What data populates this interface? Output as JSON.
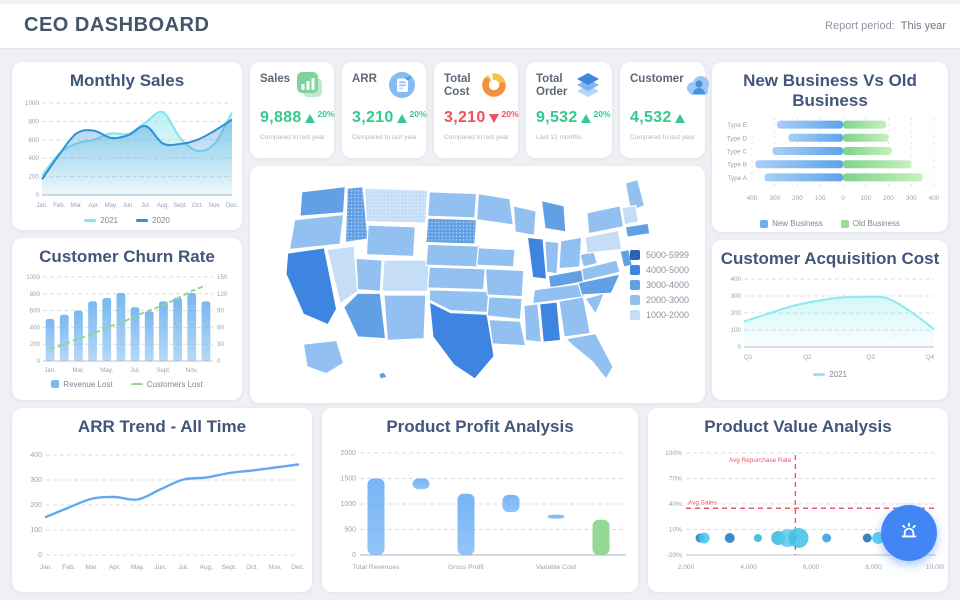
{
  "header": {
    "title": "CEO DASHBOARD",
    "report_period_label": "Report period:",
    "report_period_value": "This year"
  },
  "kpis": [
    {
      "label": "Sales",
      "value": "9,888",
      "direction": "up",
      "delta": "20%",
      "subtext": "Compared to last year",
      "icon": "bar-chart-icon",
      "accent": "#35c98e"
    },
    {
      "label": "ARR",
      "value": "3,210",
      "direction": "up",
      "delta": "20%",
      "subtext": "Compared to last year",
      "icon": "document-icon",
      "accent": "#35c98e"
    },
    {
      "label": "Total Cost",
      "value": "3,210",
      "direction": "down",
      "delta": "20%",
      "subtext": "Compared to last year",
      "icon": "donut-icon",
      "accent": "#f04f5c"
    },
    {
      "label": "Total Order",
      "value": "9,532",
      "direction": "up",
      "delta": "20%",
      "subtext": "Last 12 months.",
      "icon": "layers-icon",
      "accent": "#35c98e"
    },
    {
      "label": "Customer",
      "value": "4,532",
      "direction": "up",
      "delta": "",
      "subtext": "Compared to last year",
      "icon": "customer-cloud-icon",
      "accent": "#35c98e"
    }
  ],
  "fab": {
    "icon": "siren-icon",
    "color": "#4285f4"
  },
  "chart_data": [
    {
      "id": "monthly_sales",
      "type": "area",
      "title": "Monthly Sales",
      "categories": [
        "Jan.",
        "Feb.",
        "Mar.",
        "Apr.",
        "May.",
        "Jun.",
        "Jul.",
        "Aug.",
        "Sept.",
        "Oct.",
        "Nov.",
        "Dec."
      ],
      "series": [
        {
          "name": "2021",
          "color": "#86e3ef",
          "values": [
            210,
            450,
            560,
            600,
            670,
            665,
            790,
            900,
            620,
            480,
            560,
            900
          ]
        },
        {
          "name": "2020",
          "color": "#3390d5",
          "values": [
            170,
            440,
            670,
            700,
            620,
            650,
            750,
            560,
            555,
            600,
            700,
            820
          ]
        }
      ],
      "ylim": [
        0,
        1000
      ],
      "yticks": [
        0,
        200,
        400,
        600,
        800,
        1000
      ],
      "grid": "dashed-horizontal",
      "legend_position": "bottom"
    },
    {
      "id": "new_vs_old",
      "type": "bar-tornado",
      "title": "New Business Vs Old Business",
      "categories": [
        "Type E",
        "Type D",
        "Type C",
        "Type B",
        "Type A"
      ],
      "series": [
        {
          "name": "New Business",
          "color": "#6fb0f2",
          "side": "left",
          "values": [
            290,
            240,
            310,
            385,
            345
          ]
        },
        {
          "name": "Old Business",
          "color": "#9ddb96",
          "side": "right",
          "values": [
            190,
            200,
            215,
            300,
            350
          ]
        }
      ],
      "xticks": [
        400,
        300,
        200,
        100,
        0,
        100,
        200,
        300,
        400
      ],
      "xlim": 400,
      "legend_position": "bottom"
    },
    {
      "id": "churn",
      "type": "bar-line",
      "title": "Customer Churn Rate",
      "categories": [
        "Jan.",
        "Feb.",
        "Mar.",
        "Apr.",
        "May.",
        "Jun.",
        "Jul.",
        "Aug.",
        "Sept.",
        "Oct.",
        "Nov.",
        "Dec."
      ],
      "xtick_labels": [
        "Jan.",
        "Mar.",
        "May.",
        "Jul.",
        "Sept.",
        "Nov."
      ],
      "series": [
        {
          "name": "Revenue Lost",
          "style": "bar",
          "axis": "left",
          "color": "#79b8f0",
          "values": [
            500,
            550,
            600,
            710,
            750,
            810,
            640,
            590,
            710,
            750,
            810,
            710
          ]
        },
        {
          "name": "Customers Lost",
          "style": "dashed-line",
          "axis": "right",
          "color": "#8fd98a",
          "values": [
            22,
            30,
            40,
            48,
            60,
            68,
            80,
            90,
            100,
            112,
            125,
            135
          ]
        }
      ],
      "left_yticks": [
        0,
        200,
        400,
        600,
        800,
        1000
      ],
      "right_yticks": [
        0,
        30,
        60,
        90,
        120,
        150
      ],
      "legend_position": "bottom"
    },
    {
      "id": "usa_map",
      "type": "choropleth-map",
      "title": "",
      "legend": [
        {
          "label": "5000-5999",
          "color": "#2a63ae"
        },
        {
          "label": "4000-5000",
          "color": "#3d85e0"
        },
        {
          "label": "3000-4000",
          "color": "#62a0e6"
        },
        {
          "label": "2000-3000",
          "color": "#92c0f0"
        },
        {
          "label": "1000-2000",
          "color": "#c6ddf8"
        }
      ],
      "states": [
        {
          "id": "WA",
          "class": "3000-4000"
        },
        {
          "id": "OR",
          "class": "2000-3000"
        },
        {
          "id": "CA",
          "class": "4000-5000"
        },
        {
          "id": "NV",
          "class": "1000-2000"
        },
        {
          "id": "ID",
          "class": "3000-4000"
        },
        {
          "id": "MT",
          "class": "1000-2000"
        },
        {
          "id": "WY",
          "class": "2000-3000"
        },
        {
          "id": "UT",
          "class": "2000-3000"
        },
        {
          "id": "CO",
          "class": "1000-2000"
        },
        {
          "id": "AZ",
          "class": "3000-4000"
        },
        {
          "id": "NM",
          "class": "2000-3000"
        },
        {
          "id": "ND",
          "class": "2000-3000"
        },
        {
          "id": "SD",
          "class": "3000-4000"
        },
        {
          "id": "NE",
          "class": "2000-3000"
        },
        {
          "id": "KS",
          "class": "2000-3000"
        },
        {
          "id": "OK",
          "class": "2000-3000"
        },
        {
          "id": "TX",
          "class": "4000-5000"
        },
        {
          "id": "MN",
          "class": "2000-3000"
        },
        {
          "id": "IA",
          "class": "2000-3000"
        },
        {
          "id": "MO",
          "class": "2000-3000"
        },
        {
          "id": "AR",
          "class": "2000-3000"
        },
        {
          "id": "LA",
          "class": "2000-3000"
        },
        {
          "id": "WI",
          "class": "2000-3000"
        },
        {
          "id": "IL",
          "class": "4000-5000"
        },
        {
          "id": "MI",
          "class": "3000-4000"
        },
        {
          "id": "IN",
          "class": "2000-3000"
        },
        {
          "id": "OH",
          "class": "2000-3000"
        },
        {
          "id": "KY",
          "class": "3000-4000"
        },
        {
          "id": "TN",
          "class": "2000-3000"
        },
        {
          "id": "MS",
          "class": "2000-3000"
        },
        {
          "id": "AL",
          "class": "4000-5000"
        },
        {
          "id": "GA",
          "class": "2000-3000"
        },
        {
          "id": "FL",
          "class": "2000-3000"
        },
        {
          "id": "SC",
          "class": "2000-3000"
        },
        {
          "id": "NC",
          "class": "3000-4000"
        },
        {
          "id": "VA",
          "class": "2000-3000"
        },
        {
          "id": "WV",
          "class": "2000-3000"
        },
        {
          "id": "PA",
          "class": "1000-2000"
        },
        {
          "id": "NY",
          "class": "2000-3000"
        },
        {
          "id": "ME",
          "class": "2000-3000"
        },
        {
          "id": "VT",
          "class": "1000-2000"
        },
        {
          "id": "MA",
          "class": "3000-4000"
        },
        {
          "id": "NJ",
          "class": "3000-4000"
        },
        {
          "id": "AK",
          "class": "2000-3000"
        },
        {
          "id": "HI",
          "class": "3000-4000"
        }
      ],
      "dotted_states": [
        "MT",
        "SD",
        "ID"
      ]
    },
    {
      "id": "cac",
      "type": "area",
      "title": "Customer Acquisition Cost",
      "categories": [
        "Q1",
        "Q2",
        "Q3",
        "Q4"
      ],
      "series": [
        {
          "name": "2021",
          "color": "#8ceaf0",
          "values": [
            150,
            195,
            240,
            270,
            290,
            295,
            288,
            210,
            105
          ]
        }
      ],
      "ylim": [
        0,
        400
      ],
      "yticks": [
        0,
        100,
        200,
        300,
        400
      ],
      "grid": "dashed-horizontal",
      "legend_position": "bottom"
    },
    {
      "id": "arr_trend",
      "type": "line",
      "title": "ARR Trend - All Time",
      "categories": [
        "Jan.",
        "Feb.",
        "Mar.",
        "Apr.",
        "May.",
        "Jun.",
        "Jul.",
        "Aug.",
        "Sept.",
        "Oct.",
        "Nov.",
        "Dec."
      ],
      "series": [
        {
          "name": "ARR",
          "color": "#64a8f0",
          "values": [
            152,
            190,
            225,
            232,
            222,
            263,
            302,
            310,
            328,
            338,
            350,
            362
          ]
        }
      ],
      "ylim": [
        0,
        400
      ],
      "yticks": [
        0,
        100,
        200,
        300,
        400
      ],
      "grid": "dashed-horizontal"
    },
    {
      "id": "profit",
      "type": "waterfall",
      "title": "Product Profit Analysis",
      "categories": [
        "Total Revenues",
        "Gross Profit",
        "Variable Cost"
      ],
      "bars": [
        {
          "from": 0,
          "to": 1500,
          "color": "#6fb1f5"
        },
        {
          "from": 1290,
          "to": 1500,
          "color": "#6fb1f5"
        },
        {
          "from": 0,
          "to": 1200,
          "color": "#6fb1f5"
        },
        {
          "from": 840,
          "to": 1180,
          "color": "#6fb1f5"
        },
        {
          "from": 740,
          "to": 790,
          "color": "#6fb1f5"
        },
        {
          "from": 0,
          "to": 690,
          "color": "#93d894"
        }
      ],
      "ylim": [
        0,
        2000
      ],
      "yticks": [
        0,
        500,
        1000,
        1500,
        2000
      ],
      "grid": "dashed-horizontal"
    },
    {
      "id": "value",
      "type": "bubble",
      "title": "Product Value Analysis",
      "ytick_labels": [
        "-20%",
        "10%",
        "40%",
        "70%",
        "100%"
      ],
      "yticks": [
        -20,
        10,
        40,
        70,
        100
      ],
      "xtick_labels": [
        "2,000",
        "4,000",
        "6,000",
        "8,000",
        "10,000"
      ],
      "xticks": [
        2000,
        4000,
        6000,
        8000,
        10000
      ],
      "ref_lines": [
        {
          "label": "Avg Repurchase Rate",
          "orientation": "vertical",
          "x": 5500,
          "color": "#e8596a"
        },
        {
          "label": "Avg Sales",
          "orientation": "horizontal",
          "y": 35,
          "color": "#e8596a"
        }
      ],
      "points": [
        {
          "x": 2450,
          "y": 0,
          "r": 4.5,
          "color": "#1b78bc"
        },
        {
          "x": 2580,
          "y": 0,
          "r": 5.5,
          "color": "#45c4e8"
        },
        {
          "x": 3400,
          "y": 0,
          "r": 5,
          "color": "#1b78bc"
        },
        {
          "x": 4300,
          "y": 0,
          "r": 4,
          "color": "#2ab5d8"
        },
        {
          "x": 4950,
          "y": 0,
          "r": 7,
          "color": "#35b9e0"
        },
        {
          "x": 5250,
          "y": 0,
          "r": 9,
          "color": "#57c8ea"
        },
        {
          "x": 5600,
          "y": 0,
          "r": 10,
          "color": "#3fc0e6"
        },
        {
          "x": 6500,
          "y": 0,
          "r": 4.5,
          "color": "#2e9fd8"
        },
        {
          "x": 7800,
          "y": 0,
          "r": 4.5,
          "color": "#1b6fb4"
        },
        {
          "x": 8150,
          "y": 0,
          "r": 6,
          "color": "#49c4e6"
        },
        {
          "x": 8550,
          "y": 0,
          "r": 9,
          "color": "#2f9fd4"
        },
        {
          "x": 9050,
          "y": 0,
          "r": 5,
          "color": "#1b74b8"
        },
        {
          "x": 9400,
          "y": 0,
          "r": 4,
          "color": "#2089c8"
        }
      ],
      "grid": "dashed-horizontal"
    }
  ]
}
